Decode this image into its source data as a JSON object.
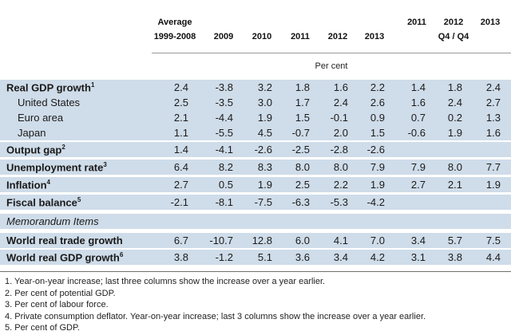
{
  "headers": {
    "avg_line1": "Average",
    "avg_line2": "1999-2008",
    "years": [
      "2009",
      "2010",
      "2011",
      "2012",
      "2013"
    ],
    "q_years": [
      "2011",
      "2012",
      "2013"
    ],
    "q_label": "Q4 / Q4"
  },
  "unit": "Per cent",
  "rows": [
    {
      "label": "Real GDP growth",
      "sup": "1",
      "style": "main",
      "shaded": true,
      "values": [
        "2.4",
        "-3.8",
        "3.2",
        "1.8",
        "1.6",
        "2.2",
        "1.4",
        "1.8",
        "2.4"
      ]
    },
    {
      "label": "United States",
      "sup": "",
      "style": "sub",
      "shaded": true,
      "values": [
        "2.5",
        "-3.5",
        "3.0",
        "1.7",
        "2.4",
        "2.6",
        "1.6",
        "2.4",
        "2.7"
      ]
    },
    {
      "label": "Euro area",
      "sup": "",
      "style": "sub",
      "shaded": true,
      "values": [
        "2.1",
        "-4.4",
        "1.9",
        "1.5",
        "-0.1",
        "0.9",
        "0.7",
        "0.2",
        "1.3"
      ]
    },
    {
      "label": "Japan",
      "sup": "",
      "style": "sub",
      "shaded": true,
      "values": [
        "1.1",
        "-5.5",
        "4.5",
        "-0.7",
        "2.0",
        "1.5",
        "-0.6",
        "1.9",
        "1.6"
      ]
    },
    {
      "label": "Output gap",
      "sup": "2",
      "style": "main",
      "shaded": true,
      "values": [
        "1.4",
        "-4.1",
        "-2.6",
        "-2.5",
        "-2.8",
        "-2.6",
        "",
        "",
        ""
      ]
    },
    {
      "label": "Unemployment rate",
      "sup": "3",
      "style": "main",
      "shaded": true,
      "values": [
        "6.4",
        "8.2",
        "8.3",
        "8.0",
        "8.0",
        "7.9",
        "7.9",
        "8.0",
        "7.7"
      ]
    },
    {
      "label": "Inflation",
      "sup": "4",
      "style": "main",
      "shaded": true,
      "values": [
        "2.7",
        "0.5",
        "1.9",
        "2.5",
        "2.2",
        "1.9",
        "2.7",
        "2.1",
        "1.9"
      ]
    },
    {
      "label": "Fiscal balance",
      "sup": "5",
      "style": "main",
      "shaded": true,
      "values": [
        "-2.1",
        "-8.1",
        "-7.5",
        "-6.3",
        "-5.3",
        "-4.2",
        "",
        "",
        ""
      ]
    },
    {
      "label": "Memorandum Items",
      "sup": "",
      "style": "memo",
      "shaded": true,
      "values": [
        "",
        "",
        "",
        "",
        "",
        "",
        "",
        "",
        ""
      ]
    },
    {
      "label": "World real trade growth",
      "sup": "",
      "style": "main",
      "shaded": true,
      "values": [
        "6.7",
        "-10.7",
        "12.8",
        "6.0",
        "4.1",
        "7.0",
        "3.4",
        "5.7",
        "7.5"
      ]
    },
    {
      "label": "World real GDP growth",
      "sup": "6",
      "style": "main",
      "shaded": true,
      "values": [
        "3.8",
        "-1.2",
        "5.1",
        "3.6",
        "3.4",
        "4.2",
        "3.1",
        "3.8",
        "4.4"
      ]
    }
  ],
  "notes": [
    "1.  Year-on-year increase; last three columns show the increase over a year earlier.",
    "2.  Per cent of potential GDP.",
    "3.  Per cent of labour force.",
    "4.  Private consumption deflator. Year-on-year increase; last 3 columns show the increase over a year earlier.",
    "5.  Per cent of GDP."
  ]
}
